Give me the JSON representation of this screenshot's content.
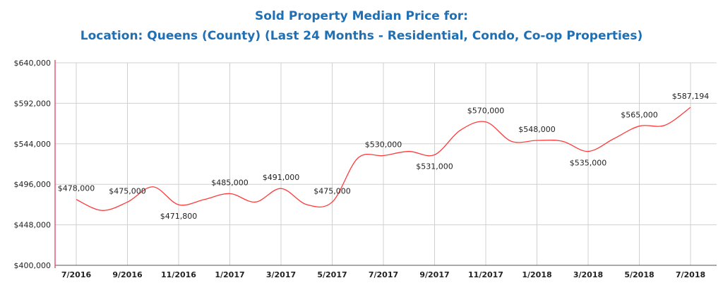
{
  "chart_data": {
    "type": "line",
    "title": "Sold Property Median Price for:",
    "subtitle": "Location: Queens (County) (Last 24 Months - Residential, Condo, Co-op Properties)",
    "categories": [
      "7/2016",
      null,
      "9/2016",
      null,
      "11/2016",
      null,
      "1/2017",
      null,
      "3/2017",
      null,
      "5/2017",
      null,
      "7/2017",
      null,
      "9/2017",
      null,
      "11/2017",
      null,
      "1/2018",
      null,
      "3/2018",
      null,
      "5/2018",
      null,
      "7/2018"
    ],
    "series": [
      {
        "color": "#ff3b3b",
        "values": [
          478000,
          465000,
          475000,
          493000,
          471800,
          478000,
          485000,
          475000,
          491000,
          472000,
          475000,
          527000,
          530000,
          535000,
          531000,
          560000,
          570000,
          547000,
          548000,
          547000,
          535000,
          550000,
          565000,
          566000,
          587194
        ],
        "value_labels": [
          "$478,000",
          null,
          "$475,000",
          null,
          "$471,800",
          null,
          "$485,000",
          null,
          "$491,000",
          null,
          "$475,000",
          null,
          "$530,000",
          null,
          "$531,000",
          null,
          "$570,000",
          null,
          "$548,000",
          null,
          "$535,000",
          null,
          "$565,000",
          null,
          "$587,194"
        ]
      }
    ],
    "ylim": [
      400000,
      640000
    ],
    "yticks": [
      {
        "value": 400000,
        "label": "$400,000"
      },
      {
        "value": 448000,
        "label": "$448,000"
      },
      {
        "value": 496000,
        "label": "$496,000"
      },
      {
        "value": 544000,
        "label": "$544,000"
      },
      {
        "value": 592000,
        "label": "$592,000"
      },
      {
        "value": 640000,
        "label": "$640,000"
      }
    ],
    "grid": true
  }
}
